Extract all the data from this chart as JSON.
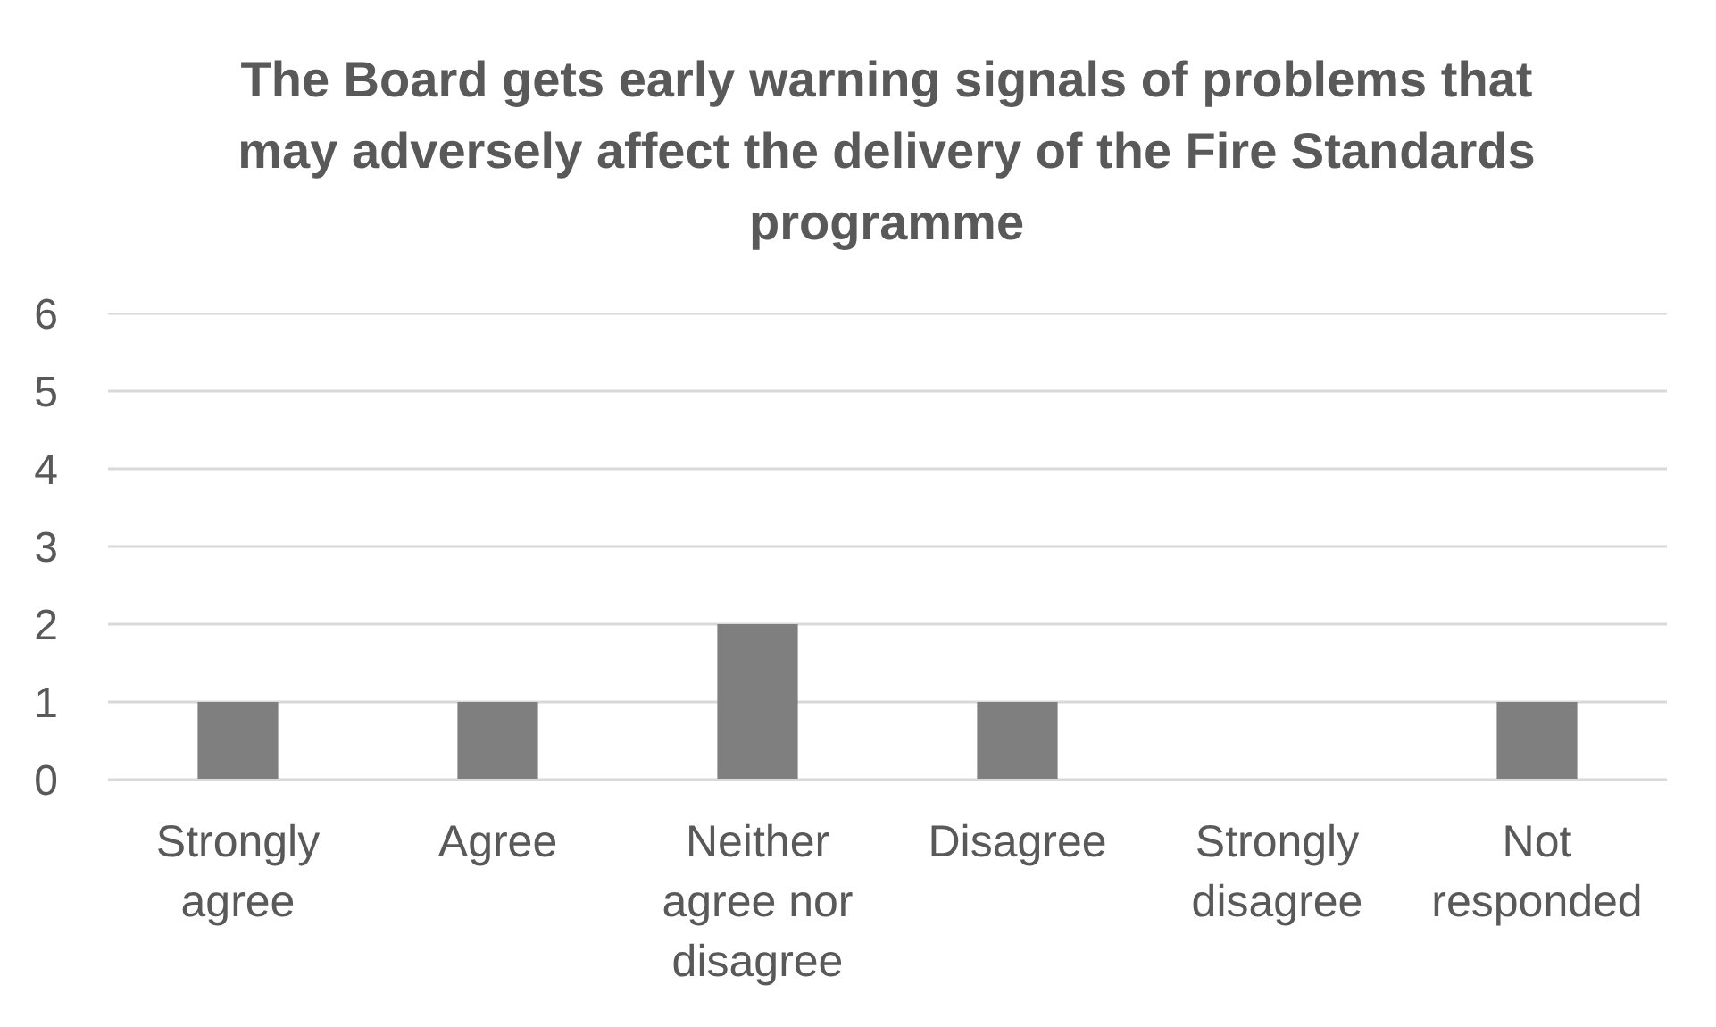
{
  "chart_data": {
    "type": "bar",
    "title": "The Board gets early warning signals of problems that may adversely affect the delivery of the Fire Standards programme",
    "categories": [
      "Strongly agree",
      "Agree",
      "Neither agree nor disagree",
      "Disagree",
      "Strongly disagree",
      "Not responded"
    ],
    "values": [
      1,
      1,
      2,
      1,
      0,
      1
    ],
    "color": "#7f7f7f",
    "ylim": [
      0,
      6
    ],
    "yticks": [
      0,
      1,
      2,
      3,
      4,
      5,
      6
    ],
    "grid": "y"
  }
}
